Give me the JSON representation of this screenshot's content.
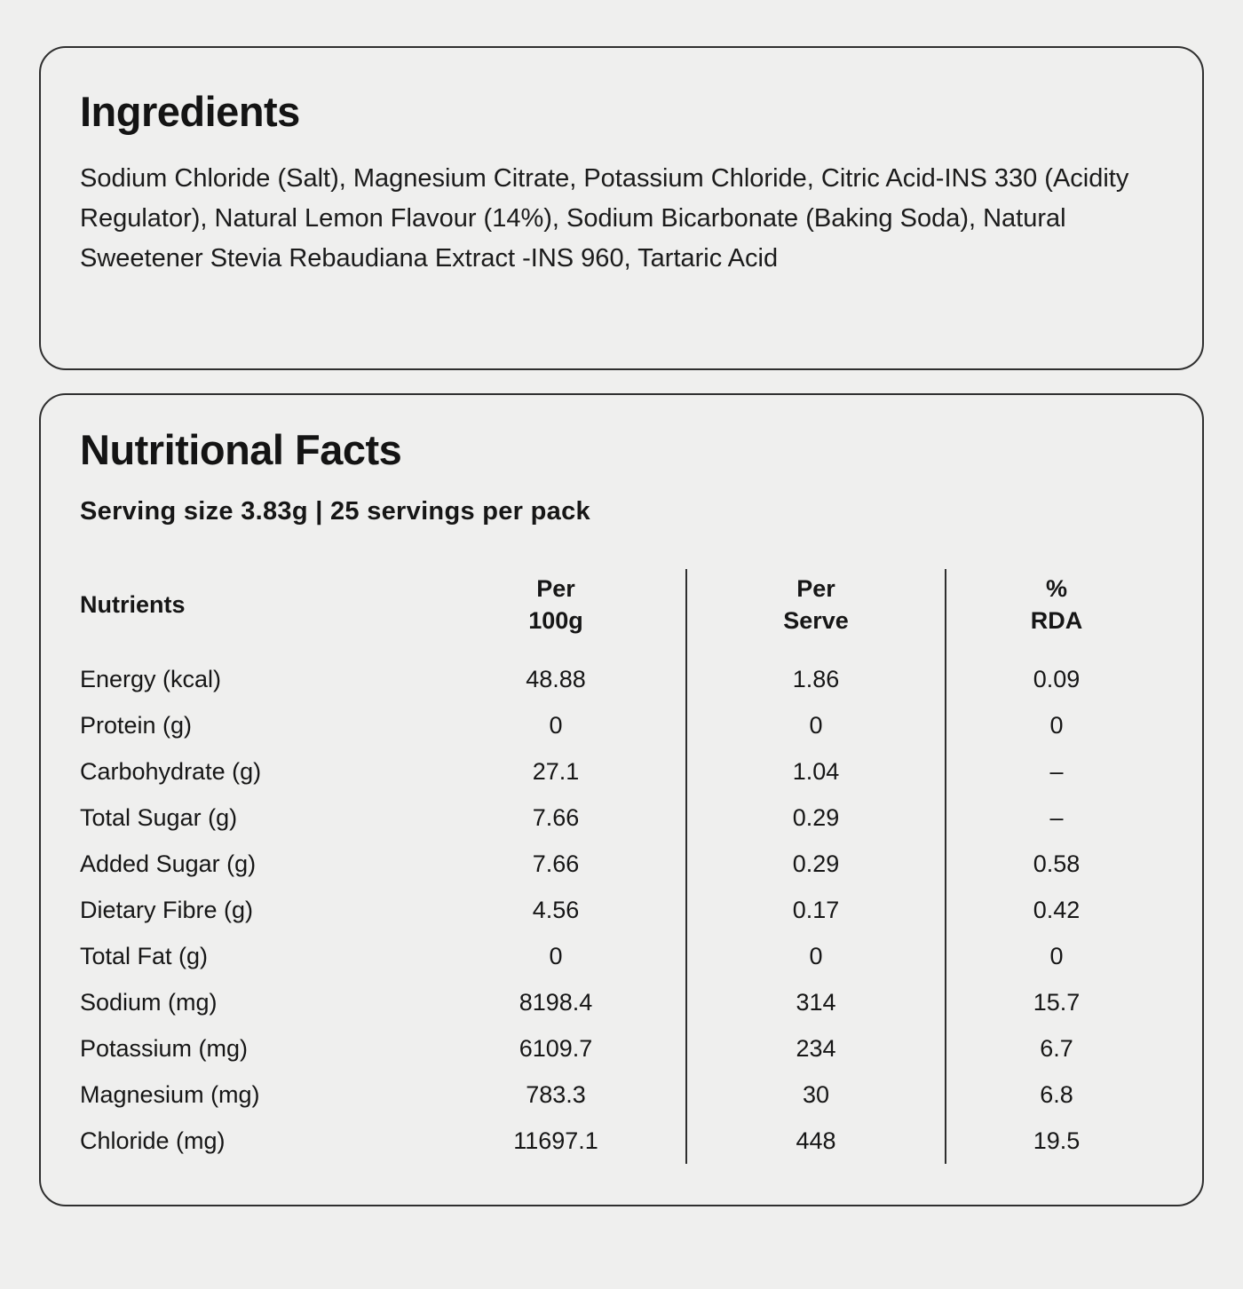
{
  "page": {
    "background_color": "#efefee",
    "text_color": "#171717",
    "border_color": "#2f2f2f"
  },
  "ingredients_card": {
    "title": "Ingredients",
    "body": "Sodium Chloride (Salt), Magnesium Citrate, Potassium Chloride, Citric Acid-INS 330 (Acidity Regulator), Natural Lemon Flavour (14%), Sodium Bicarbonate (Baking Soda), Natural Sweetener Stevia Rebaudiana Extract -INS 960, Tartaric Acid"
  },
  "nutrition_card": {
    "title": "Nutritional Facts",
    "serving_info": "Serving size 3.83g | 25 servings per pack",
    "table": {
      "headers": {
        "nutrients": "Nutrients",
        "per_100g": "Per\n100g",
        "per_serve": "Per\nServe",
        "rda": "%\nRDA"
      },
      "rows": [
        {
          "name": "Energy (kcal)",
          "per_100g": "48.88",
          "per_serve": "1.86",
          "rda": "0.09"
        },
        {
          "name": "Protein (g)",
          "per_100g": "0",
          "per_serve": "0",
          "rda": "0"
        },
        {
          "name": "Carbohydrate (g)",
          "per_100g": "27.1",
          "per_serve": "1.04",
          "rda": "–"
        },
        {
          "name": "Total Sugar (g)",
          "per_100g": "7.66",
          "per_serve": "0.29",
          "rda": "–"
        },
        {
          "name": "Added Sugar (g)",
          "per_100g": "7.66",
          "per_serve": "0.29",
          "rda": "0.58"
        },
        {
          "name": "Dietary Fibre (g)",
          "per_100g": "4.56",
          "per_serve": "0.17",
          "rda": "0.42"
        },
        {
          "name": "Total Fat (g)",
          "per_100g": "0",
          "per_serve": "0",
          "rda": "0"
        },
        {
          "name": "Sodium (mg)",
          "per_100g": "8198.4",
          "per_serve": "314",
          "rda": "15.7"
        },
        {
          "name": "Potassium (mg)",
          "per_100g": "6109.7",
          "per_serve": "234",
          "rda": "6.7"
        },
        {
          "name": "Magnesium (mg)",
          "per_100g": "783.3",
          "per_serve": "30",
          "rda": "6.8"
        },
        {
          "name": "Chloride (mg)",
          "per_100g": "11697.1",
          "per_serve": "448",
          "rda": "19.5"
        }
      ]
    }
  }
}
